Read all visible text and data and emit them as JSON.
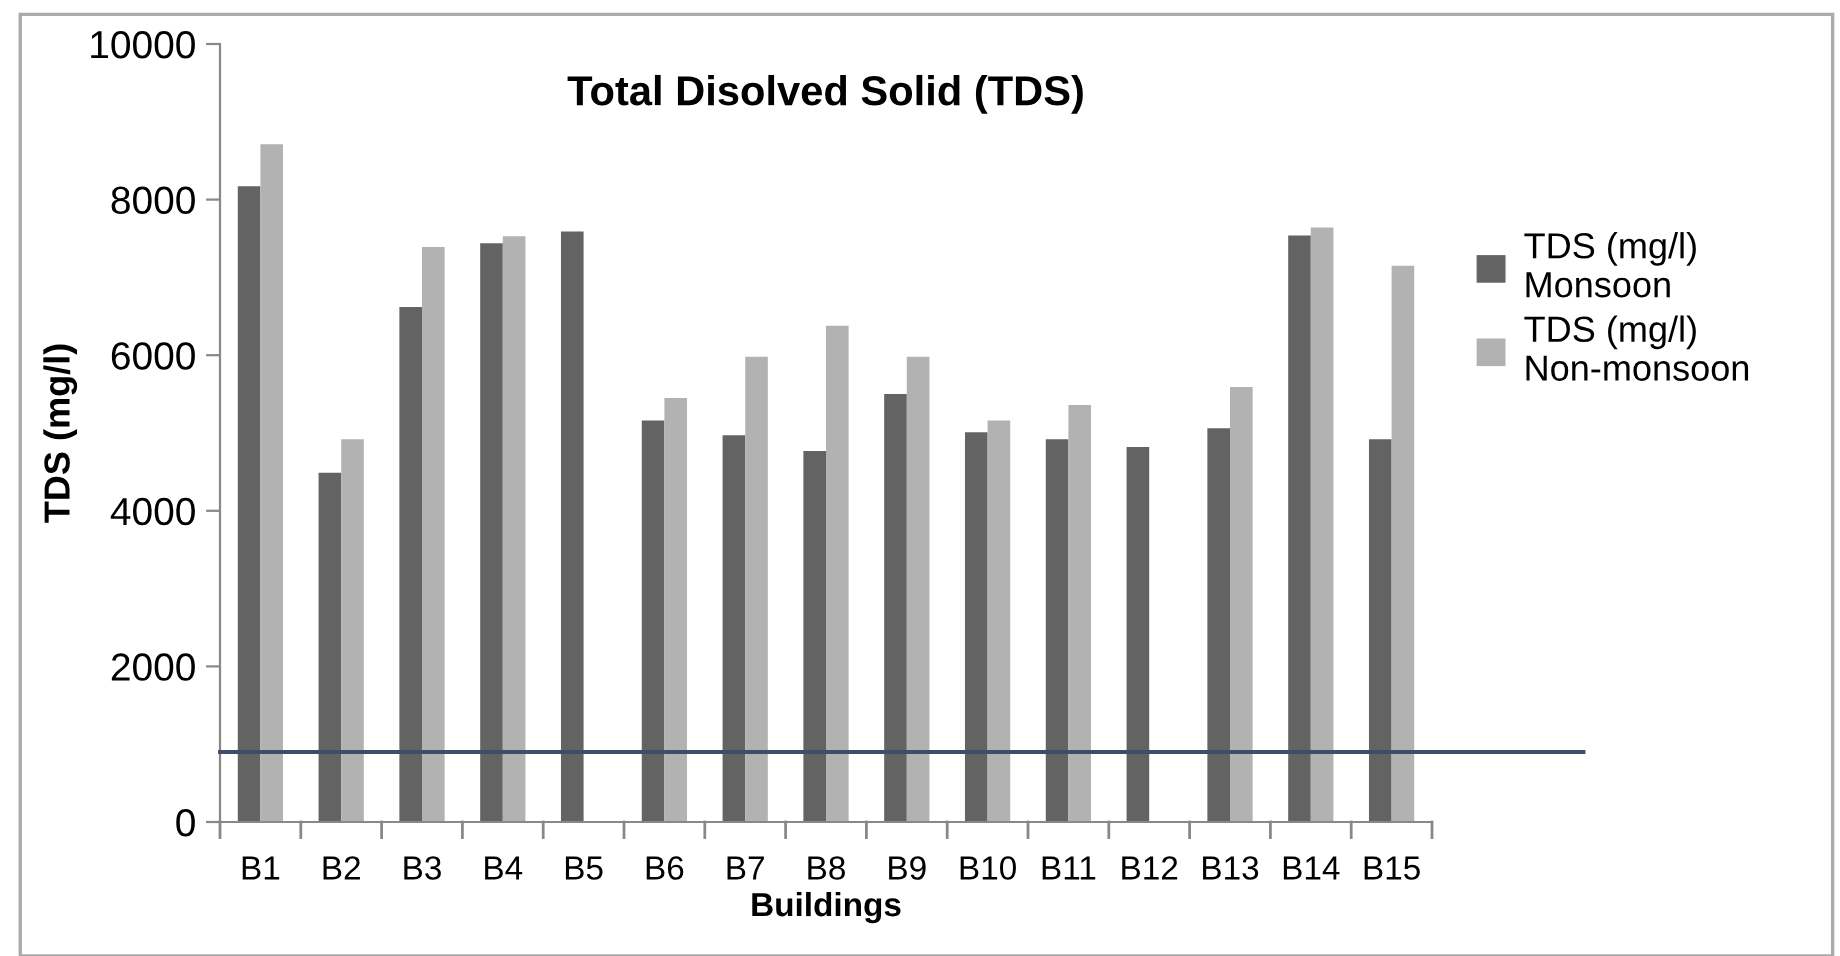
{
  "chart_data": {
    "type": "bar",
    "title": "Total Disolved Solid (TDS)",
    "xlabel": "Buildings",
    "ylabel": "TDS (mg/l)",
    "categories": [
      "B1",
      "B2",
      "B3",
      "B4",
      "B5",
      "B6",
      "B7",
      "B8",
      "B9",
      "B10",
      "B11",
      "B12",
      "B13",
      "B14",
      "B15"
    ],
    "series": [
      {
        "name": "TDS (mg/l)\nMonsoon",
        "color": "#636363",
        "values": [
          8170,
          4490,
          6620,
          7440,
          7590,
          5160,
          4970,
          4770,
          5500,
          5010,
          4920,
          4820,
          5060,
          7540,
          4920
        ]
      },
      {
        "name": "TDS (mg/l)\nNon-monsoon",
        "color": "#b2b2b2",
        "values": [
          8710,
          4920,
          7390,
          7530,
          null,
          5450,
          5980,
          6380,
          5980,
          5160,
          5360,
          null,
          5590,
          7640,
          7150
        ]
      }
    ],
    "ylim": [
      0,
      10000
    ],
    "yticks": [
      0,
      2000,
      4000,
      6000,
      8000,
      10000
    ],
    "grid": false,
    "legend": "right",
    "ref_lines": [
      {
        "axis": "y",
        "value": 900,
        "color": "#3b4f66"
      }
    ]
  }
}
